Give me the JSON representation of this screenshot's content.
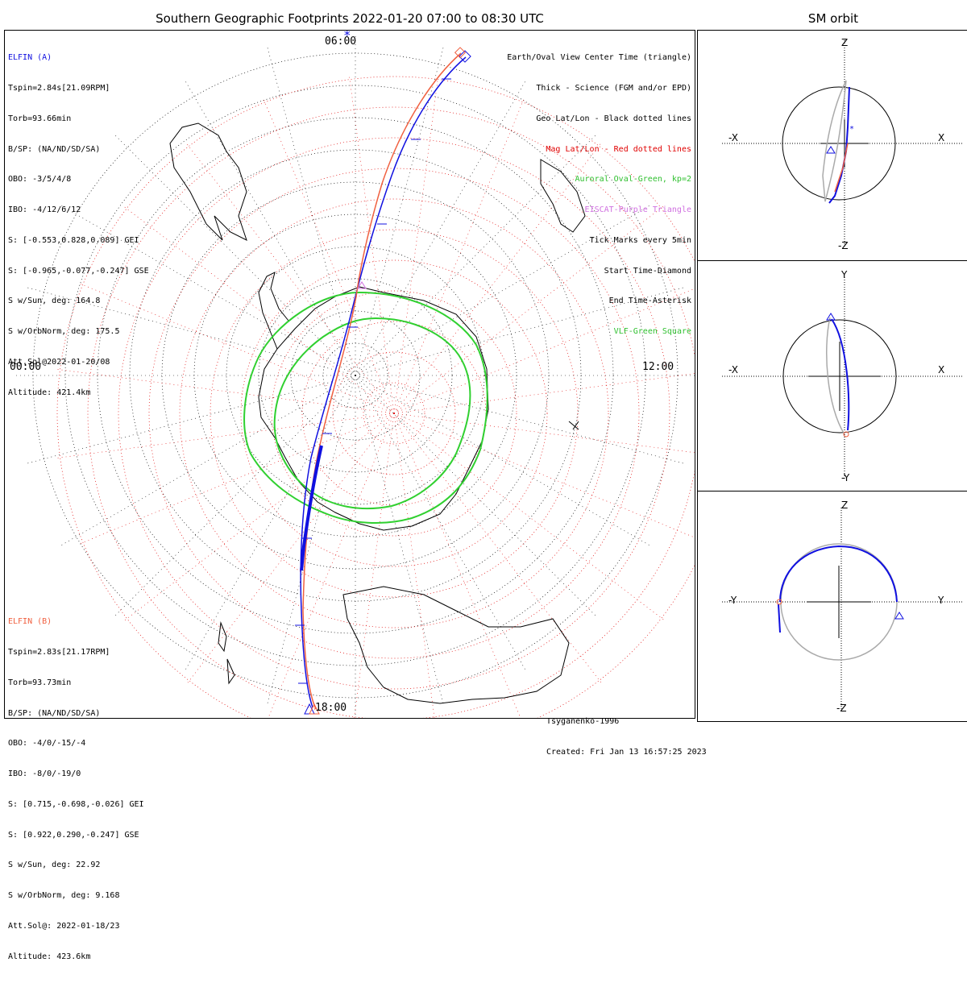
{
  "title": "Southern Geographic Footprints 2022-01-20 07:00 to 08:30 UTC",
  "sm_title": "SM orbit",
  "mlt_labels": {
    "top": "06:00",
    "left": "00:00",
    "right": "12:00",
    "bottom": "18:00"
  },
  "elfin_a": {
    "name": "ELFIN (A)",
    "color": "#1010e0",
    "lines": [
      "Tspin=2.84s[21.09RPM]",
      "Torb=93.66min",
      "B/SP: (NA/ND/SD/SA)",
      "OBO: -3/5/4/8",
      "IBO: -4/12/6/12",
      "S: [-0.553,0.828,0.089] GEI",
      "S: [-0.965,-0.077,-0.247] GSE",
      "S w/Sun, deg: 164.8",
      "S w/OrbNorm, deg: 175.5",
      "Att.Sol@2022-01-20/08",
      "Altitude: 421.4km"
    ]
  },
  "elfin_b": {
    "name": "ELFIN (B)",
    "color": "#f06040",
    "lines": [
      "Tspin=2.83s[21.17RPM]",
      "Torb=93.73min",
      "B/SP: (NA/ND/SD/SA)",
      "OBO: -4/0/-15/-4",
      "IBO: -8/0/-19/0",
      "S: [0.715,-0.698,-0.026] GEI",
      "S: [0.922,0.290,-0.247] GSE",
      "S w/Sun, deg: 22.92",
      "S w/OrbNorm, deg: 9.168",
      "Att.Sol@: 2022-01-18/23",
      "Altitude: 423.6km"
    ]
  },
  "legend": [
    {
      "text": "Earth/Oval View Center Time (triangle)",
      "color": "#000000"
    },
    {
      "text": "Thick - Science (FGM and/or EPD)",
      "color": "#000000"
    },
    {
      "text": "Geo Lat/Lon - Black dotted lines",
      "color": "#000000"
    },
    {
      "text": "Mag Lat/Lon - Red dotted lines",
      "color": "#e00000"
    },
    {
      "text": "Auroral Oval-Green, kp=2",
      "color": "#30c030"
    },
    {
      "text": "EISCAT-Purple Triangle",
      "color": "#d070e0"
    },
    {
      "text": "Tick Marks every 5min",
      "color": "#000000"
    },
    {
      "text": "Start Time-Diamond",
      "color": "#000000"
    },
    {
      "text": "End Time-Asterisk",
      "color": "#000000"
    },
    {
      "text": "VLF-Green Square",
      "color": "#30c030"
    }
  ],
  "credits": [
    "Tsyganenko-1996",
    "Created: Fri Jan 13 16:57:25 2023"
  ],
  "sm_panels": [
    {
      "top": "Z",
      "bottom": "-Z",
      "left": "-X",
      "right": "X"
    },
    {
      "top": "Y",
      "bottom": "-Y",
      "left": "-X",
      "right": "X"
    },
    {
      "top": "Z",
      "bottom": "-Z",
      "left": "-Y",
      "right": "Y"
    }
  ],
  "colors": {
    "geo_grid": "#000000",
    "mag_grid": "#e00000",
    "oval": "#30d030",
    "track_a": "#1010e0",
    "track_b": "#f06040",
    "orbit_gray": "#aaaaaa"
  }
}
